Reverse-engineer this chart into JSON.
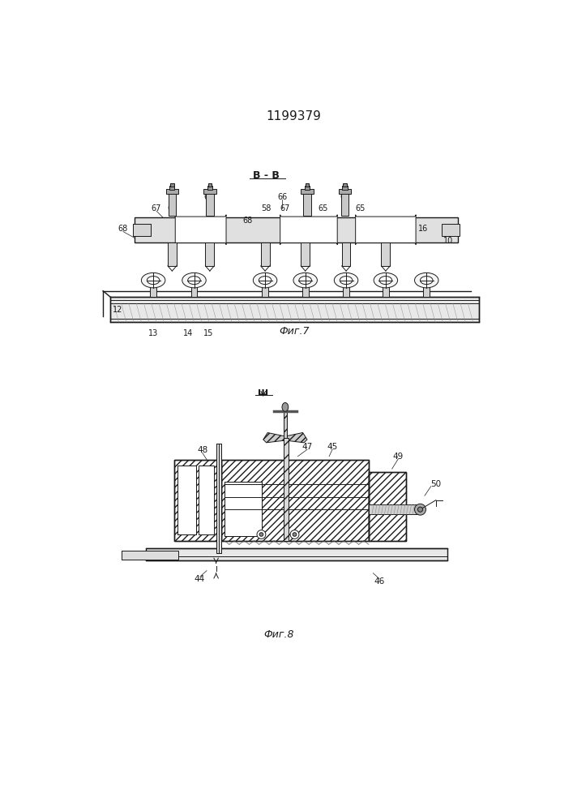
{
  "title": "1199379",
  "title_fontsize": 11,
  "bg_color": "#ffffff",
  "line_color": "#1a1a1a",
  "fig7_label": "Фиг.7",
  "fig8_label": "Фиг.8",
  "section_label_fig7": "В - В",
  "section_label_fig8": "ш"
}
